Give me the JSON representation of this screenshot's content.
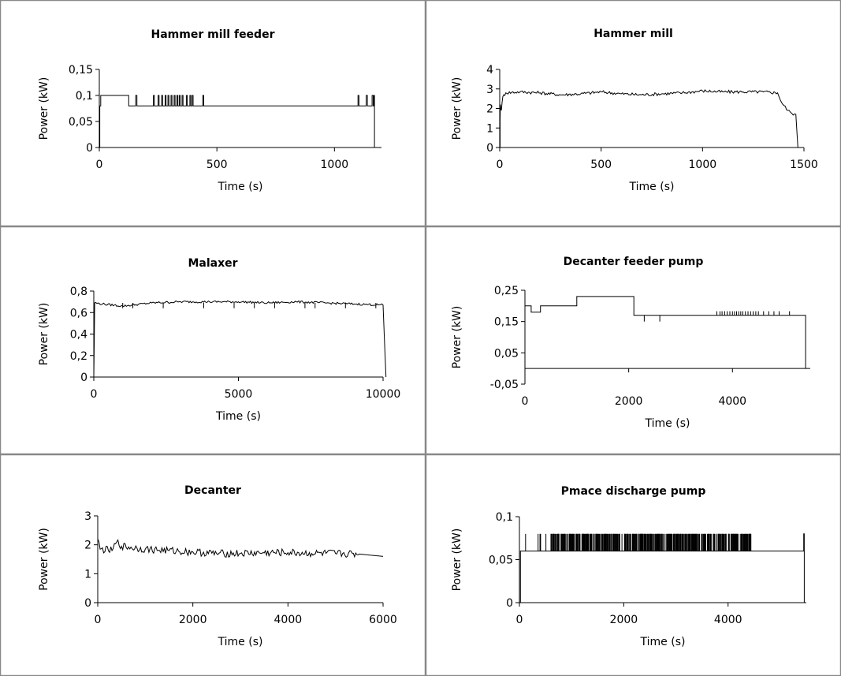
{
  "figure": {
    "panels": [
      {
        "title": "Hammer mill feeder"
      },
      {
        "title": "Hammer mill"
      },
      {
        "title": "Malaxer"
      },
      {
        "title": "Decanter feeder pump"
      },
      {
        "title": "Decanter"
      },
      {
        "title": "Pmace discharge pump"
      }
    ]
  },
  "chart_data": [
    {
      "type": "line",
      "title": "Hammer mill feeder",
      "xlabel": "Time (s)",
      "ylabel": "Power (kW)",
      "xlim": [
        0,
        1200
      ],
      "ylim": [
        0,
        0.15
      ],
      "xticks": [
        0,
        500,
        1000
      ],
      "xtick_labels": [
        "0",
        "500",
        "1000"
      ],
      "yticks": [
        0,
        0.05,
        0.1,
        0.15
      ],
      "ytick_labels": [
        "0",
        "0,05",
        "0,1",
        "0,15"
      ],
      "grid": false,
      "series": [
        {
          "x": [
            0,
            2,
            6,
            20,
            120,
            125,
            155,
            160,
            230,
            234,
            250,
            254,
            265,
            269,
            280,
            284,
            292,
            296,
            305,
            309,
            318,
            322,
            330,
            334,
            340,
            344,
            352,
            356,
            370,
            374,
            385,
            389,
            395,
            399,
            440,
            444,
            1100,
            1104,
            1135,
            1140,
            1160,
            1165,
            1168,
            1170
          ],
          "y": [
            0,
            0.08,
            0.1,
            0.1,
            0.1,
            0.08,
            0.1,
            0.08,
            0.1,
            0.08,
            0.1,
            0.08,
            0.1,
            0.08,
            0.1,
            0.08,
            0.1,
            0.08,
            0.1,
            0.08,
            0.1,
            0.08,
            0.1,
            0.08,
            0.1,
            0.08,
            0.1,
            0.08,
            0.1,
            0.08,
            0.1,
            0.08,
            0.1,
            0.08,
            0.1,
            0.08,
            0.1,
            0.08,
            0.1,
            0.08,
            0.1,
            0.08,
            0.1,
            0
          ]
        }
      ]
    },
    {
      "type": "line",
      "title": "Hammer mill",
      "xlabel": "Time (s)",
      "ylabel": "Power (kW)",
      "xlim": [
        0,
        1500
      ],
      "ylim": [
        0,
        4
      ],
      "xticks": [
        0,
        500,
        1000,
        1500
      ],
      "xtick_labels": [
        "0",
        "500",
        "1000",
        "1500"
      ],
      "yticks": [
        0,
        1,
        2,
        3,
        4
      ],
      "ytick_labels": [
        "0",
        "1",
        "2",
        "3",
        "4"
      ],
      "grid": false,
      "series": [
        {
          "x": [
            0,
            3,
            8,
            15,
            30,
            100,
            200,
            300,
            400,
            500,
            600,
            700,
            800,
            900,
            1000,
            1100,
            1200,
            1300,
            1370,
            1390,
            1420,
            1440,
            1460,
            1470
          ],
          "y": [
            0,
            2.2,
            1.9,
            2.6,
            2.8,
            2.85,
            2.8,
            2.7,
            2.75,
            2.85,
            2.75,
            2.7,
            2.75,
            2.8,
            2.9,
            2.85,
            2.85,
            2.85,
            2.8,
            2.3,
            1.9,
            1.75,
            1.7,
            0
          ]
        }
      ]
    },
    {
      "type": "line",
      "title": "Malaxer",
      "xlabel": "Time (s)",
      "ylabel": "Power (kW)",
      "xlim": [
        0,
        10000
      ],
      "ylim": [
        0,
        0.8
      ],
      "xticks": [
        0,
        5000,
        10000
      ],
      "xtick_labels": [
        "0",
        "5000",
        "10000"
      ],
      "yticks": [
        0,
        0.2,
        0.4,
        0.6,
        0.8
      ],
      "ytick_labels": [
        "0",
        "0,2",
        "0,4",
        "0,6",
        "0,8"
      ],
      "grid": false,
      "series": [
        {
          "x": [
            0,
            30,
            300,
            1000,
            2000,
            3000,
            4000,
            5000,
            6000,
            7000,
            8000,
            9000,
            10000,
            10100
          ],
          "y": [
            0,
            0.69,
            0.68,
            0.66,
            0.69,
            0.7,
            0.7,
            0.7,
            0.69,
            0.7,
            0.69,
            0.68,
            0.67,
            0
          ]
        }
      ]
    },
    {
      "type": "line",
      "title": "Decanter feeder pump",
      "xlabel": "Time (s)",
      "ylabel": "Power (kW)",
      "xlim": [
        0,
        5500
      ],
      "ylim": [
        -0.05,
        0.25
      ],
      "xticks": [
        0,
        2000,
        4000
      ],
      "xtick_labels": [
        "0",
        "2000",
        "4000"
      ],
      "yticks": [
        -0.05,
        0.05,
        0.15,
        0.25
      ],
      "ytick_labels": [
        "-0,05",
        "0,05",
        "0,15",
        "0,25"
      ],
      "grid": false,
      "series": [
        {
          "x": [
            0,
            20,
            120,
            300,
            1000,
            2100,
            5400,
            5410
          ],
          "y": [
            0.2,
            0.2,
            0.18,
            0.2,
            0.23,
            0.17,
            0.17,
            0
          ]
        }
      ]
    },
    {
      "type": "line",
      "title": "Decanter",
      "xlabel": "Time (s)",
      "ylabel": "Power (kW)",
      "xlim": [
        0,
        6000
      ],
      "ylim": [
        0,
        3
      ],
      "xticks": [
        0,
        2000,
        4000,
        6000
      ],
      "xtick_labels": [
        "0",
        "2000",
        "4000",
        "6000"
      ],
      "yticks": [
        0,
        1,
        2,
        3
      ],
      "ytick_labels": [
        "0",
        "1",
        "2",
        "3"
      ],
      "grid": false,
      "series": [
        {
          "x": [
            0,
            50,
            300,
            400,
            500,
            1000,
            1500,
            2000,
            2500,
            3000,
            3500,
            4000,
            4500,
            5000,
            5500,
            6000
          ],
          "y": [
            2.2,
            1.85,
            1.8,
            2.1,
            1.95,
            1.85,
            1.8,
            1.75,
            1.7,
            1.7,
            1.72,
            1.73,
            1.7,
            1.7,
            1.68,
            1.6
          ]
        }
      ]
    },
    {
      "type": "line",
      "title": "Pmace discharge pump",
      "xlabel": "Time (s)",
      "ylabel": "Power (kW)",
      "xlim": [
        0,
        5500
      ],
      "ylim": [
        0,
        0.1
      ],
      "xticks": [
        0,
        2000,
        4000
      ],
      "xtick_labels": [
        "0",
        "2000",
        "4000"
      ],
      "yticks": [
        0,
        0.05,
        0.1
      ],
      "ytick_labels": [
        "0",
        "0,05",
        "0,1"
      ],
      "grid": false,
      "series": [
        {
          "x": [
            0,
            20,
            4500,
            5450,
            5460
          ],
          "y": [
            0,
            0.06,
            0.06,
            0.08,
            0
          ]
        }
      ]
    }
  ]
}
